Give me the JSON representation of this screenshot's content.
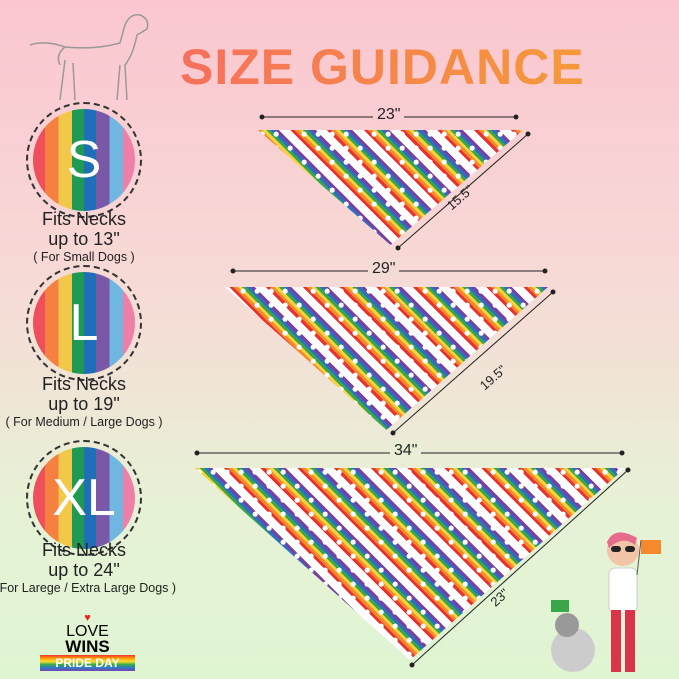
{
  "title": "SIZE GUIDANCE",
  "sizes": [
    {
      "letter": "S",
      "fits": "Fits Necks",
      "upto": "up to 13\"",
      "note": "( For Small Dogs )",
      "width": "23\"",
      "height": "15.5\""
    },
    {
      "letter": "L",
      "fits": "Fits Necks",
      "upto": "up to 19\"",
      "note": "( For Medium / Large Dogs )",
      "width": "29\"",
      "height": "19.5\""
    },
    {
      "letter": "XL",
      "fits": "Fits Necks",
      "upto": "up to 24\"",
      "note": "( For Larege / Extra Large Dogs )",
      "width": "34\"",
      "height": "23\""
    }
  ],
  "badge": {
    "line1": "LOVE",
    "line2": "WINS",
    "line3": "PRIDE DAY"
  },
  "colors": {
    "title": "#f6705c",
    "bg_top": "#fbc6d0",
    "bg_bottom": "#dff5d2"
  }
}
